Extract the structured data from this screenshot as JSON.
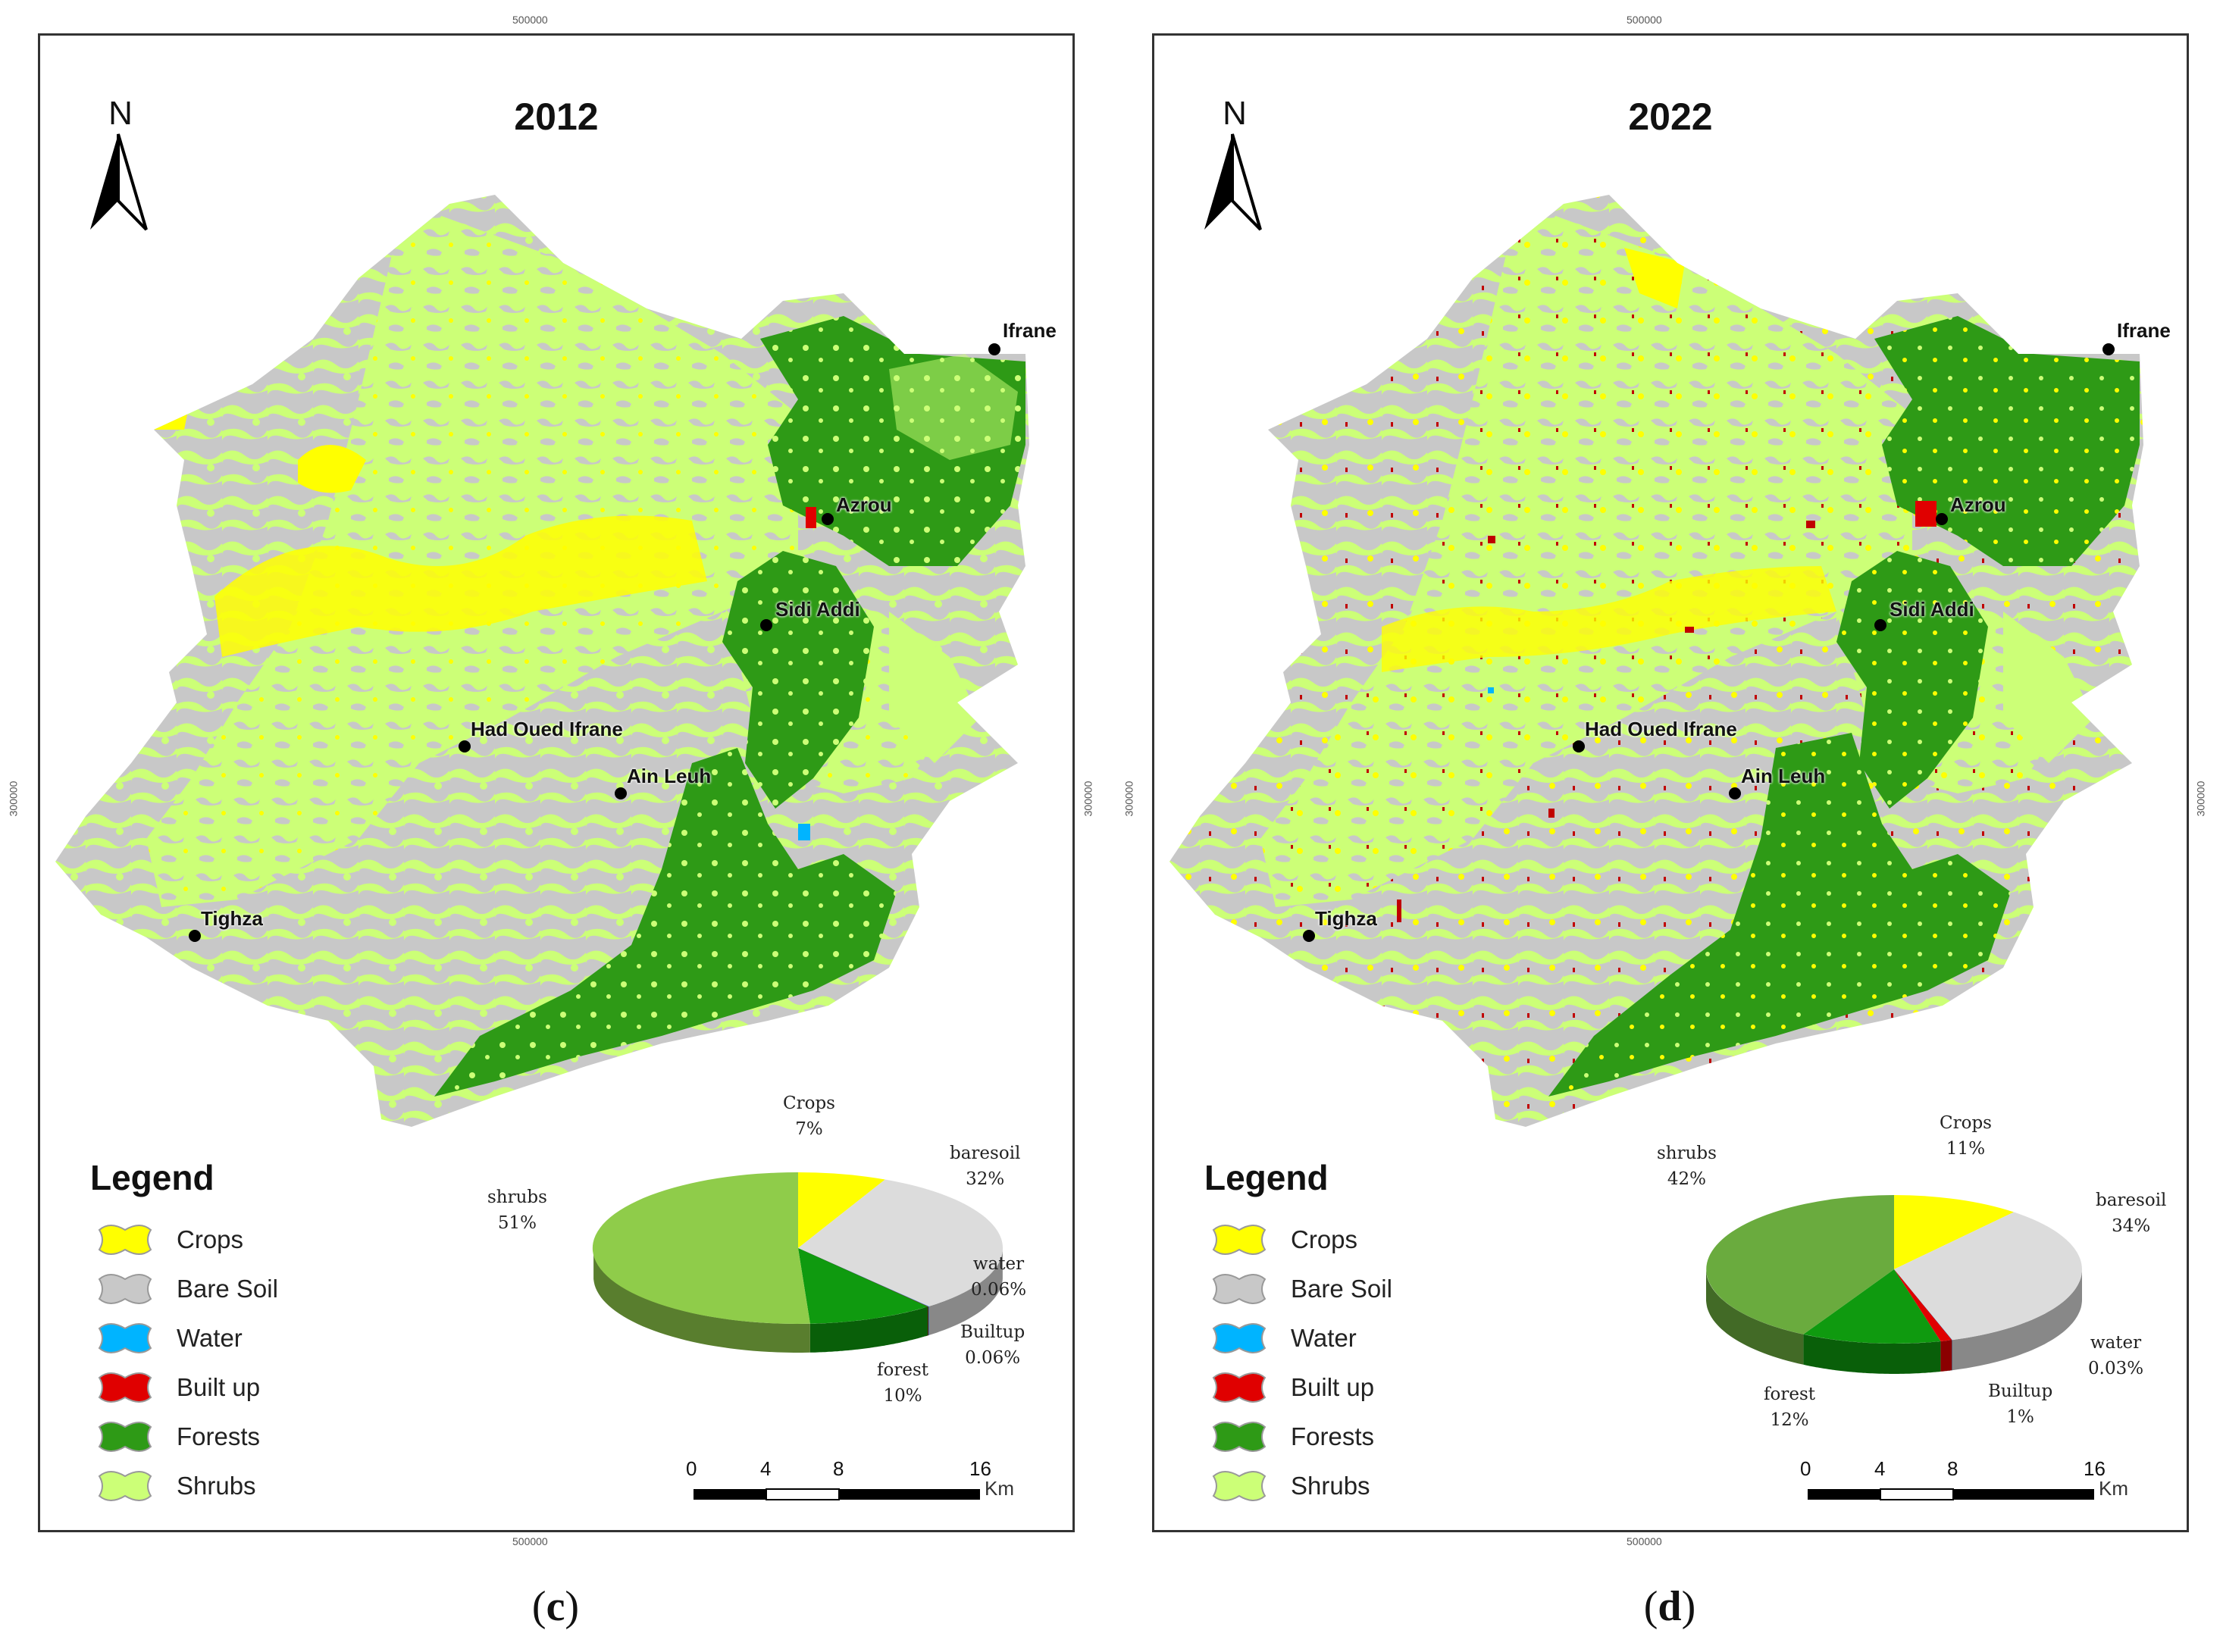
{
  "panels": [
    {
      "id": "c",
      "year": "2012",
      "caption_letter": "c",
      "north": "N",
      "graticule": {
        "top": "500000",
        "bottom": "500000",
        "left": "300000",
        "right": "300000"
      },
      "towns": [
        {
          "name": "Ifrane"
        },
        {
          "name": "Azrou"
        },
        {
          "name": "Sidi Addi"
        },
        {
          "name": "Had Oued Ifrane"
        },
        {
          "name": "Ain Leuh"
        },
        {
          "name": "Tighza"
        }
      ],
      "legend": {
        "title": "Legend",
        "items": [
          {
            "label": "Crops",
            "color": "#ffff00"
          },
          {
            "label": "Bare Soil",
            "color": "#c8c8c8"
          },
          {
            "label": "Water",
            "color": "#00b4ff"
          },
          {
            "label": "Built up",
            "color": "#e00000"
          },
          {
            "label": "Forests",
            "color": "#2e9a16"
          },
          {
            "label": "Shrubs",
            "color": "#ccff77"
          }
        ]
      },
      "pie": {
        "slices": [
          {
            "name": "Crops",
            "label": "Crops",
            "pct_text": "7%",
            "value": 7,
            "color": "#ffff00"
          },
          {
            "name": "baresoil",
            "label": "baresoil",
            "pct_text": "32%",
            "value": 32,
            "color": "#dcdcdc"
          },
          {
            "name": "water",
            "label": "water",
            "pct_text": "0.06%",
            "value": 0.06,
            "color": "#00b4ff"
          },
          {
            "name": "Builtup",
            "label": "Builtup",
            "pct_text": "0.06%",
            "value": 0.06,
            "color": "#e00000"
          },
          {
            "name": "forest",
            "label": "forest",
            "pct_text": "10%",
            "value": 10,
            "color": "#0f9a0f"
          },
          {
            "name": "shrubs",
            "label": "shrubs",
            "pct_text": "51%",
            "value": 51,
            "color": "#8fcc4a"
          }
        ]
      },
      "scale": {
        "ticks": [
          "0",
          "4",
          "8",
          "16"
        ],
        "unit": "Km"
      }
    },
    {
      "id": "d",
      "year": "2022",
      "caption_letter": "d",
      "north": "N",
      "graticule": {
        "top": "500000",
        "bottom": "500000",
        "left": "300000",
        "right": "300000"
      },
      "towns": [
        {
          "name": "Ifrane"
        },
        {
          "name": "Azrou"
        },
        {
          "name": "Sidi Addi"
        },
        {
          "name": "Had Oued Ifrane"
        },
        {
          "name": "Ain Leuh"
        },
        {
          "name": "Tighza"
        }
      ],
      "legend": {
        "title": "Legend",
        "items": [
          {
            "label": "Crops",
            "color": "#ffff00"
          },
          {
            "label": "Bare Soil",
            "color": "#c8c8c8"
          },
          {
            "label": "Water",
            "color": "#00b4ff"
          },
          {
            "label": "Built up",
            "color": "#e00000"
          },
          {
            "label": "Forests",
            "color": "#2e9a16"
          },
          {
            "label": "Shrubs",
            "color": "#ccff77"
          }
        ]
      },
      "pie": {
        "slices": [
          {
            "name": "Crops",
            "label": "Crops",
            "pct_text": "11%",
            "value": 11,
            "color": "#ffff00"
          },
          {
            "name": "baresoil",
            "label": "baresoil",
            "pct_text": "34%",
            "value": 34,
            "color": "#dcdcdc"
          },
          {
            "name": "water",
            "label": "water",
            "pct_text": "0.03%",
            "value": 0.03,
            "color": "#00b4ff"
          },
          {
            "name": "Builtup",
            "label": "Builtup",
            "pct_text": "1%",
            "value": 1,
            "color": "#e00000"
          },
          {
            "name": "forest",
            "label": "forest",
            "pct_text": "12%",
            "value": 12,
            "color": "#0f9a0f"
          },
          {
            "name": "shrubs",
            "label": "shrubs",
            "pct_text": "42%",
            "value": 42,
            "color": "#6aab3e"
          }
        ]
      },
      "scale": {
        "ticks": [
          "0",
          "4",
          "8",
          "16"
        ],
        "unit": "Km"
      }
    }
  ]
}
